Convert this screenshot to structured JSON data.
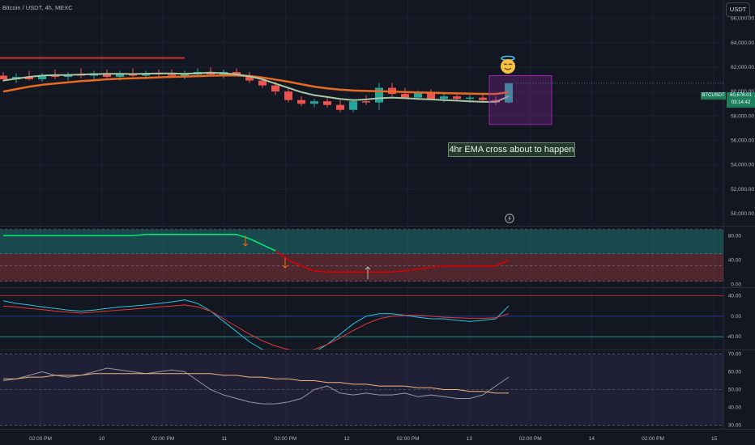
{
  "header": {
    "title": "Bitcoin / USDT, 4h, MEXC",
    "currency": "USDT"
  },
  "price_label": {
    "ticker": "BTCUSDT",
    "price": "60,678.01",
    "countdown": "03:14:42"
  },
  "annotation": {
    "text": "4hr EMA cross about to happen"
  },
  "icons": {
    "marker": "angel-emoji-icon",
    "alert": "lightning-icon"
  },
  "colors": {
    "background": "#131722",
    "bull": "#26a69a",
    "bear": "#ef5350",
    "ema_fast": "#a8c8a6",
    "ema_slow": "#e96b22",
    "resistance": "#d32f2f",
    "signal_green": "#00e676",
    "signal_red": "#d50000",
    "box": "#9c27b0"
  },
  "chart_data": [
    {
      "type": "candlestick",
      "pane": "price",
      "ylim": [
        49000,
        67500
      ],
      "y_ticks": [
        "66,000.00",
        "64,000.00",
        "62,000.00",
        "60,000.00",
        "58,000.00",
        "56,000.00",
        "54,000.00",
        "52,000.00",
        "50,000.00"
      ],
      "x_ticks": [
        "02:00 PM",
        "10",
        "02:00 PM",
        "11",
        "02:00 PM",
        "12",
        "02:00 PM",
        "13",
        "02:00 PM",
        "14",
        "02:00 PM",
        "15"
      ],
      "candles": [
        [
          61300,
          61600,
          60800,
          61000
        ],
        [
          61000,
          61500,
          60700,
          61200
        ],
        [
          61200,
          61700,
          60900,
          61000
        ],
        [
          61000,
          61500,
          60800,
          61300
        ],
        [
          61300,
          61800,
          61000,
          61200
        ],
        [
          61200,
          61600,
          60900,
          61400
        ],
        [
          61400,
          61900,
          61100,
          61300
        ],
        [
          61300,
          61700,
          61000,
          61500
        ],
        [
          61500,
          61800,
          61100,
          61200
        ],
        [
          61200,
          61700,
          60900,
          61400
        ],
        [
          61400,
          61900,
          61200,
          61300
        ],
        [
          61300,
          61700,
          61000,
          61500
        ],
        [
          61500,
          61800,
          61200,
          61400
        ],
        [
          61400,
          61800,
          61100,
          61300
        ],
        [
          61300,
          61700,
          61000,
          61400
        ],
        [
          61400,
          61900,
          61200,
          61600
        ],
        [
          61600,
          62000,
          61300,
          61400
        ],
        [
          61400,
          61800,
          61100,
          61600
        ],
        [
          61600,
          61900,
          61300,
          61300
        ],
        [
          61300,
          61600,
          60700,
          60900
        ],
        [
          60900,
          61200,
          60300,
          60500
        ],
        [
          60500,
          60800,
          59700,
          60000
        ],
        [
          60000,
          60300,
          59100,
          59300
        ],
        [
          59300,
          59600,
          58800,
          59000
        ],
        [
          59000,
          59400,
          58700,
          59200
        ],
        [
          59200,
          59600,
          58700,
          58900
        ],
        [
          58900,
          59300,
          58300,
          58500
        ],
        [
          58500,
          59400,
          58300,
          59200
        ],
        [
          59200,
          59700,
          58900,
          59100
        ],
        [
          59100,
          60700,
          58500,
          60300
        ],
        [
          60300,
          60700,
          59600,
          59800
        ],
        [
          59800,
          60300,
          59400,
          59500
        ],
        [
          59500,
          60100,
          59300,
          59900
        ],
        [
          59900,
          60200,
          59400,
          59400
        ],
        [
          59400,
          59800,
          59100,
          59600
        ],
        [
          59600,
          59900,
          59300,
          59400
        ],
        [
          59400,
          59700,
          59100,
          59500
        ],
        [
          59500,
          59900,
          59200,
          59300
        ],
        [
          59300,
          59600,
          58900,
          59100
        ],
        [
          59100,
          60700,
          59000,
          60678
        ]
      ],
      "series": [
        {
          "values": [
            60900,
            61050,
            61200,
            61300,
            61350,
            61350,
            61400,
            61420,
            61450,
            61450,
            61430,
            61460,
            61480,
            61480,
            61450,
            61500,
            61550,
            61500,
            61400,
            61250,
            61000,
            60650,
            60300,
            59950,
            59700,
            59550,
            59400,
            59300,
            59350,
            59450,
            59500,
            59450,
            59400,
            59350,
            59300,
            59250,
            59200,
            59150,
            59150,
            59600
          ]
        },
        {
          "values": [
            60000,
            60200,
            60400,
            60550,
            60650,
            60750,
            60850,
            60920,
            61000,
            61050,
            61080,
            61120,
            61160,
            61200,
            61230,
            61260,
            61300,
            61320,
            61320,
            61270,
            61150,
            60980,
            60800,
            60600,
            60400,
            60250,
            60150,
            60080,
            60050,
            60020,
            59990,
            59960,
            59930,
            59900,
            59870,
            59850,
            59830,
            59810,
            59800,
            59950
          ]
        }
      ],
      "resistance": 62750,
      "box": {
        "y_top": 61300,
        "y_bottom": 57300
      }
    },
    {
      "type": "line",
      "pane": "signal",
      "ylim": [
        -5,
        95
      ],
      "y_ticks": [
        "80.00",
        "40.00",
        "0.00"
      ],
      "series": [
        {
          "values": [
            80,
            80,
            80,
            80,
            80,
            80,
            80,
            80,
            80,
            80,
            80,
            82,
            82,
            82,
            82,
            82,
            82,
            82,
            82,
            75,
            65,
            55,
            40,
            30,
            22,
            20,
            20,
            20,
            20,
            20,
            20,
            22,
            25,
            28,
            30,
            30,
            30,
            30,
            30,
            40
          ]
        }
      ],
      "bands": {
        "upper": 90,
        "upper_mid": 50,
        "lower_mid": 30,
        "lower": 5
      }
    },
    {
      "type": "line",
      "pane": "oscillator",
      "ylim": [
        -65,
        55
      ],
      "y_ticks": [
        "40.00",
        "0.00",
        "-40.00"
      ],
      "series": [
        {
          "values": [
            30,
            25,
            22,
            18,
            15,
            12,
            10,
            12,
            15,
            18,
            20,
            22,
            25,
            28,
            32,
            25,
            10,
            -10,
            -30,
            -50,
            -65,
            -70,
            -75,
            -75,
            -70,
            -55,
            -35,
            -15,
            0,
            5,
            5,
            2,
            -2,
            -5,
            -5,
            -8,
            -10,
            -8,
            -5,
            20
          ]
        },
        {
          "values": [
            20,
            18,
            15,
            13,
            10,
            8,
            6,
            8,
            10,
            12,
            14,
            16,
            18,
            20,
            22,
            18,
            10,
            -5,
            -20,
            -35,
            -48,
            -58,
            -65,
            -68,
            -65,
            -55,
            -42,
            -28,
            -15,
            -5,
            0,
            2,
            2,
            0,
            -2,
            -3,
            -4,
            -4,
            -3,
            5
          ]
        }
      ],
      "bands": {
        "upper": 40,
        "lower": -40
      }
    },
    {
      "type": "line",
      "pane": "rsi",
      "ylim": [
        28,
        72
      ],
      "y_ticks": [
        "70.00",
        "60.00",
        "50.00",
        "40.00",
        "30.00"
      ],
      "series": [
        {
          "values": [
            55,
            56,
            58,
            60,
            58,
            57,
            58,
            60,
            62,
            61,
            60,
            59,
            60,
            61,
            60,
            55,
            50,
            47,
            45,
            43,
            42,
            42,
            43,
            45,
            50,
            52,
            48,
            47,
            48,
            47,
            47,
            48,
            46,
            47,
            46,
            45,
            45,
            47,
            52,
            57
          ]
        },
        {
          "values": [
            56,
            56,
            57,
            57,
            58,
            58,
            58,
            59,
            59,
            59,
            59,
            59,
            59,
            59,
            59,
            59,
            59,
            58,
            58,
            57,
            57,
            56,
            56,
            55,
            55,
            54,
            54,
            53,
            53,
            52,
            52,
            52,
            51,
            51,
            50,
            50,
            49,
            49,
            48,
            48
          ]
        }
      ],
      "bands": {
        "upper": 70,
        "mid": 50,
        "lower": 30
      }
    }
  ]
}
